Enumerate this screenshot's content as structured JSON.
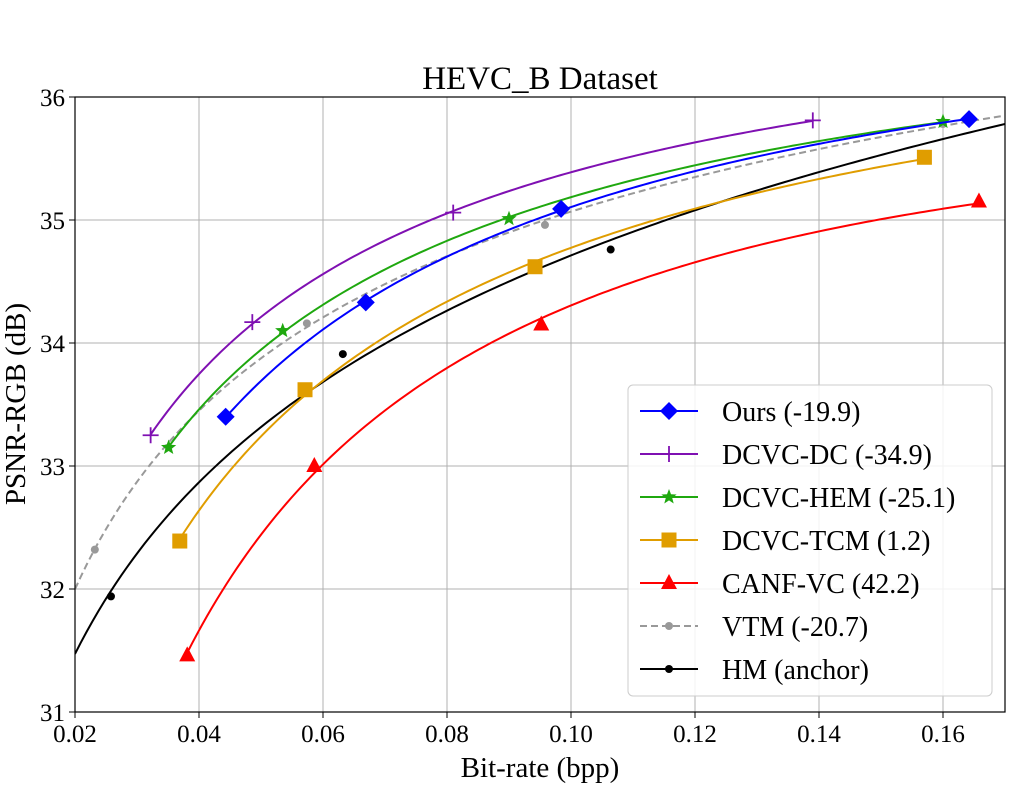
{
  "chart_data": {
    "type": "line",
    "title": "HEVC_B Dataset",
    "xlabel": "Bit-rate (bpp)",
    "ylabel": "PSNR-RGB (dB)",
    "xlim": [
      0.02,
      0.17
    ],
    "ylim": [
      31,
      36
    ],
    "xticks": [
      0.02,
      0.04,
      0.06,
      0.08,
      0.1,
      0.12,
      0.14,
      0.16
    ],
    "xtick_labels": [
      "0.02",
      "0.04",
      "0.06",
      "0.08",
      "0.10",
      "0.12",
      "0.14",
      "0.16"
    ],
    "yticks": [
      31,
      32,
      33,
      34,
      35,
      36
    ],
    "ytick_labels": [
      "31",
      "32",
      "33",
      "34",
      "35",
      "36"
    ],
    "grid": true,
    "legend_position": "lower-right",
    "series": [
      {
        "name": "Ours (-19.9)",
        "color": "#0000ff",
        "marker": "diamond",
        "dash": "solid",
        "x": [
          0.0443,
          0.0669,
          0.0984,
          0.1642
        ],
        "y": [
          33.4,
          34.33,
          35.09,
          35.82
        ]
      },
      {
        "name": "DCVC-DC (-34.9)",
        "color": "#7f10b2",
        "marker": "plus",
        "dash": "solid",
        "x": [
          0.0322,
          0.0486,
          0.081,
          0.139
        ],
        "y": [
          33.25,
          34.17,
          35.06,
          35.81
        ]
      },
      {
        "name": "DCVC-HEM (-25.1)",
        "color": "#1fa80f",
        "marker": "star",
        "dash": "solid",
        "x": [
          0.0351,
          0.0535,
          0.09,
          0.16
        ],
        "y": [
          33.15,
          34.1,
          35.01,
          35.8
        ]
      },
      {
        "name": "DCVC-TCM (1.2)",
        "color": "#e09d00",
        "marker": "square",
        "dash": "solid",
        "x": [
          0.0369,
          0.0571,
          0.0942,
          0.157
        ],
        "y": [
          32.39,
          33.62,
          34.62,
          35.51
        ]
      },
      {
        "name": "CANF-VC (42.2)",
        "color": "#ff0000",
        "marker": "triangle",
        "dash": "solid",
        "x": [
          0.0381,
          0.0586,
          0.0952,
          0.1658
        ],
        "y": [
          31.46,
          33.0,
          34.15,
          35.15
        ]
      },
      {
        "name": "VTM (-20.7)",
        "color": "#999999",
        "marker": "dot",
        "dash": "dashed",
        "x": [
          0.0232,
          0.0574,
          0.0958,
          0.16
        ],
        "y": [
          32.32,
          34.16,
          34.96,
          35.78
        ]
      },
      {
        "name": "HM (anchor)",
        "color": "#000000",
        "marker": "dot",
        "dash": "solid",
        "x": [
          0.0258,
          0.0632,
          0.1064
        ],
        "y": [
          31.94,
          33.91,
          34.76
        ]
      }
    ]
  }
}
